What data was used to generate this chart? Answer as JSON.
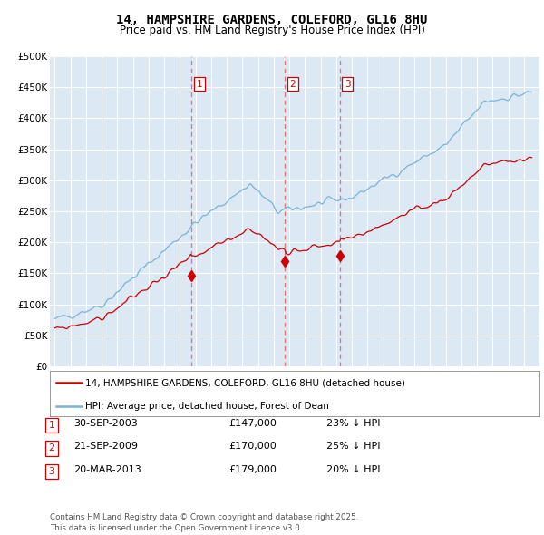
{
  "title": "14, HAMPSHIRE GARDENS, COLEFORD, GL16 8HU",
  "subtitle": "Price paid vs. HM Land Registry's House Price Index (HPI)",
  "ylim": [
    0,
    500000
  ],
  "yticks": [
    0,
    50000,
    100000,
    150000,
    200000,
    250000,
    300000,
    350000,
    400000,
    450000,
    500000
  ],
  "ytick_labels": [
    "£0",
    "£50K",
    "£100K",
    "£150K",
    "£200K",
    "£250K",
    "£300K",
    "£350K",
    "£400K",
    "£450K",
    "£500K"
  ],
  "hpi_color": "#7ab3d4",
  "price_color": "#cc0000",
  "vline_color": "#e87070",
  "bg_color": "#dde8f5",
  "sale_dates": [
    2003.75,
    2009.72,
    2013.22
  ],
  "sale_prices": [
    147000,
    170000,
    179000
  ],
  "sale_labels": [
    "1",
    "2",
    "3"
  ],
  "legend_house": "14, HAMPSHIRE GARDENS, COLEFORD, GL16 8HU (detached house)",
  "legend_hpi": "HPI: Average price, detached house, Forest of Dean",
  "table_rows": [
    [
      "1",
      "30-SEP-2003",
      "£147,000",
      "23% ↓ HPI"
    ],
    [
      "2",
      "21-SEP-2009",
      "£170,000",
      "25% ↓ HPI"
    ],
    [
      "3",
      "20-MAR-2013",
      "£179,000",
      "20% ↓ HPI"
    ]
  ],
  "footer": "Contains HM Land Registry data © Crown copyright and database right 2025.\nThis data is licensed under the Open Government Licence v3.0."
}
